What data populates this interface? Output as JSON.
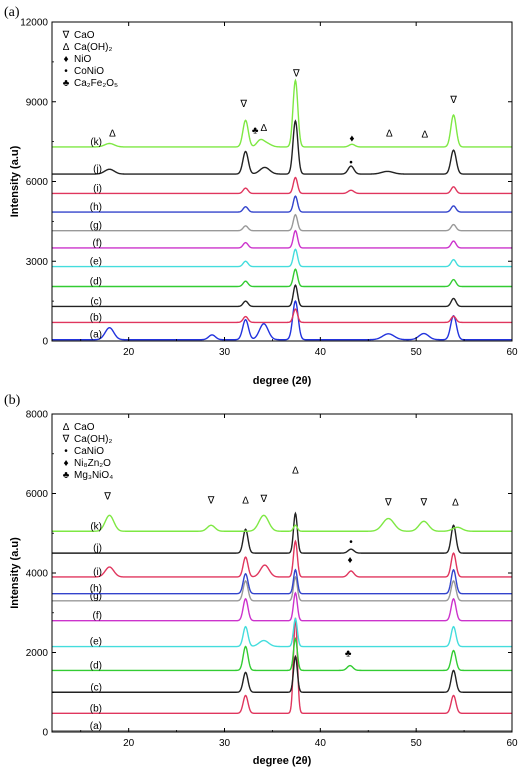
{
  "chart_data": [
    {
      "type": "line",
      "panel_label": "(a)",
      "xlabel": "degree (2θ)",
      "ylabel": "Intensity (a.u)",
      "xlim": [
        12,
        60
      ],
      "ylim": [
        0,
        12000
      ],
      "x_ticks": [
        20,
        30,
        40,
        50,
        60
      ],
      "y_ticks": [
        0,
        3000,
        6000,
        9000,
        12000
      ],
      "legend": [
        {
          "symbol": "∇",
          "label": "CaO"
        },
        {
          "symbol": "∆",
          "label": "Ca(OH)₂"
        },
        {
          "symbol": "♦",
          "label": "NiO"
        },
        {
          "symbol": "•",
          "label": "CoNiO"
        },
        {
          "symbol": "♣",
          "label": "Ca₂Fe₂O₅"
        }
      ],
      "series": [
        {
          "name": "(a)",
          "color": "#2233dd",
          "baseline": 50,
          "peaks": [
            [
              18.0,
              450,
              0.45
            ],
            [
              28.7,
              180,
              0.35
            ],
            [
              32.2,
              750,
              0.3
            ],
            [
              34.1,
              600,
              0.45
            ],
            [
              37.4,
              1450,
              0.28
            ],
            [
              47.1,
              220,
              0.6
            ],
            [
              50.8,
              230,
              0.5
            ],
            [
              53.9,
              900,
              0.3
            ]
          ]
        },
        {
          "name": "(b)",
          "color": "#e0365e",
          "baseline": 700,
          "peaks": [
            [
              32.2,
              220,
              0.25
            ],
            [
              37.4,
              500,
              0.22
            ],
            [
              53.9,
              230,
              0.25
            ]
          ]
        },
        {
          "name": "(c)",
          "color": "#222222",
          "baseline": 1300,
          "peaks": [
            [
              32.2,
              200,
              0.25
            ],
            [
              37.4,
              800,
              0.22
            ],
            [
              53.9,
              300,
              0.25
            ]
          ]
        },
        {
          "name": "(d)",
          "color": "#33cc33",
          "baseline": 2050,
          "peaks": [
            [
              32.2,
              200,
              0.25
            ],
            [
              37.4,
              650,
              0.22
            ],
            [
              53.9,
              260,
              0.25
            ]
          ]
        },
        {
          "name": "(e)",
          "color": "#44dddd",
          "baseline": 2800,
          "peaks": [
            [
              32.2,
              200,
              0.25
            ],
            [
              37.4,
              650,
              0.22
            ],
            [
              53.9,
              260,
              0.25
            ]
          ]
        },
        {
          "name": "(f)",
          "color": "#cc33cc",
          "baseline": 3500,
          "peaks": [
            [
              32.2,
              200,
              0.25
            ],
            [
              37.4,
              650,
              0.22
            ],
            [
              53.9,
              260,
              0.25
            ]
          ]
        },
        {
          "name": "(g)",
          "color": "#999999",
          "baseline": 4150,
          "peaks": [
            [
              32.2,
              180,
              0.25
            ],
            [
              37.4,
              600,
              0.22
            ],
            [
              53.9,
              230,
              0.25
            ]
          ]
        },
        {
          "name": "(h)",
          "color": "#3344cc",
          "baseline": 4850,
          "peaks": [
            [
              32.2,
              200,
              0.25
            ],
            [
              37.4,
              600,
              0.22
            ],
            [
              53.9,
              230,
              0.25
            ]
          ]
        },
        {
          "name": "(i)",
          "color": "#e0365e",
          "baseline": 5550,
          "peaks": [
            [
              32.2,
              200,
              0.25
            ],
            [
              37.4,
              600,
              0.22
            ],
            [
              43.2,
              120,
              0.3
            ],
            [
              53.9,
              250,
              0.25
            ]
          ]
        },
        {
          "name": "(j)",
          "color": "#222222",
          "baseline": 6280,
          "peaks": [
            [
              18.0,
              180,
              0.5
            ],
            [
              32.2,
              850,
              0.28
            ],
            [
              34.2,
              250,
              0.5
            ],
            [
              37.4,
              2000,
              0.25
            ],
            [
              43.2,
              300,
              0.3
            ],
            [
              47.0,
              100,
              0.6
            ],
            [
              53.9,
              900,
              0.28
            ]
          ]
        },
        {
          "name": "(k)",
          "color": "#7ee843",
          "baseline": 7300,
          "peaks": [
            [
              18.0,
              130,
              0.5
            ],
            [
              32.2,
              1000,
              0.28
            ],
            [
              33.7,
              200,
              0.35
            ],
            [
              34.3,
              150,
              0.5
            ],
            [
              37.4,
              2500,
              0.25
            ],
            [
              43.3,
              100,
              0.3
            ],
            [
              53.9,
              1200,
              0.28
            ]
          ]
        }
      ],
      "annotations": [
        {
          "symbol": "∆",
          "x": 18.3,
          "y": 7700
        },
        {
          "symbol": "∇",
          "x": 32.0,
          "y": 8800
        },
        {
          "symbol": "♣",
          "x": 33.2,
          "y": 7800
        },
        {
          "symbol": "∆",
          "x": 34.1,
          "y": 7900
        },
        {
          "symbol": "∇",
          "x": 37.5,
          "y": 9950
        },
        {
          "symbol": "♦",
          "x": 43.3,
          "y": 7500
        },
        {
          "symbol": "•",
          "x": 43.2,
          "y": 6600
        },
        {
          "symbol": "∆",
          "x": 47.2,
          "y": 7700
        },
        {
          "symbol": "∆",
          "x": 50.9,
          "y": 7650
        },
        {
          "symbol": "∇",
          "x": 53.9,
          "y": 8950
        }
      ]
    },
    {
      "type": "line",
      "panel_label": "(b)",
      "xlabel": "degree (2θ)",
      "ylabel": "Intensity (a.u)",
      "xlim": [
        12,
        60
      ],
      "ylim": [
        0,
        8000
      ],
      "x_ticks": [
        20,
        30,
        40,
        50,
        60
      ],
      "y_ticks": [
        0,
        2000,
        4000,
        6000,
        8000
      ],
      "legend": [
        {
          "symbol": "∆",
          "label": "CaO"
        },
        {
          "symbol": "∇",
          "label": "Ca(OH)₂"
        },
        {
          "symbol": "•",
          "label": "CaNiO"
        },
        {
          "symbol": "♦",
          "label": "Ni₈Zn₂O"
        },
        {
          "symbol": "♣",
          "label": "Mg₃NiO₄"
        }
      ],
      "series": [
        {
          "name": "(a)",
          "color": "#888888",
          "baseline": 30,
          "peaks": []
        },
        {
          "name": "(b)",
          "color": "#e0365e",
          "baseline": 470,
          "peaks": [
            [
              32.2,
              450,
              0.25
            ],
            [
              37.4,
              2400,
              0.2
            ],
            [
              53.9,
              450,
              0.25
            ]
          ]
        },
        {
          "name": "(c)",
          "color": "#222222",
          "baseline": 1000,
          "peaks": [
            [
              32.2,
              500,
              0.25
            ],
            [
              37.4,
              900,
              0.2
            ],
            [
              53.9,
              550,
              0.25
            ]
          ]
        },
        {
          "name": "(d)",
          "color": "#33cc33",
          "baseline": 1550,
          "peaks": [
            [
              32.2,
              600,
              0.25
            ],
            [
              37.4,
              800,
              0.2
            ],
            [
              43.1,
              120,
              0.3
            ],
            [
              53.9,
              500,
              0.25
            ]
          ]
        },
        {
          "name": "(e)",
          "color": "#44dddd",
          "baseline": 2150,
          "peaks": [
            [
              32.2,
              500,
              0.25
            ],
            [
              34.1,
              150,
              0.5
            ],
            [
              37.4,
              700,
              0.2
            ],
            [
              53.9,
              500,
              0.25
            ]
          ]
        },
        {
          "name": "(f)",
          "color": "#cc33cc",
          "baseline": 2800,
          "peaks": [
            [
              32.2,
              550,
              0.25
            ],
            [
              37.4,
              700,
              0.2
            ],
            [
              53.9,
              550,
              0.25
            ]
          ]
        },
        {
          "name": "(g)",
          "color": "#999999",
          "baseline": 3300,
          "peaks": [
            [
              32.2,
              500,
              0.25
            ],
            [
              37.4,
              600,
              0.2
            ],
            [
              53.9,
              500,
              0.25
            ]
          ]
        },
        {
          "name": "(h)",
          "color": "#3344cc",
          "baseline": 3480,
          "peaks": [
            [
              32.2,
              500,
              0.25
            ],
            [
              37.4,
              600,
              0.2
            ],
            [
              53.9,
              600,
              0.25
            ]
          ]
        },
        {
          "name": "(i)",
          "color": "#e0365e",
          "baseline": 3900,
          "peaks": [
            [
              18.0,
              250,
              0.45
            ],
            [
              32.2,
              500,
              0.25
            ],
            [
              34.2,
              300,
              0.45
            ],
            [
              37.4,
              900,
              0.2
            ],
            [
              43.2,
              150,
              0.3
            ],
            [
              53.9,
              600,
              0.25
            ]
          ]
        },
        {
          "name": "(j)",
          "color": "#222222",
          "baseline": 4500,
          "peaks": [
            [
              32.2,
              600,
              0.25
            ],
            [
              37.4,
              1000,
              0.2
            ],
            [
              43.2,
              100,
              0.3
            ],
            [
              53.9,
              700,
              0.25
            ]
          ]
        },
        {
          "name": "(k)",
          "color": "#7ee843",
          "baseline": 5050,
          "peaks": [
            [
              18.0,
              400,
              0.45
            ],
            [
              28.6,
              150,
              0.4
            ],
            [
              34.1,
              400,
              0.5
            ],
            [
              37.4,
              150,
              0.2
            ],
            [
              47.1,
              320,
              0.6
            ],
            [
              50.8,
              250,
              0.5
            ],
            [
              54.3,
              100,
              0.5
            ]
          ]
        }
      ],
      "annotations": [
        {
          "symbol": "∇",
          "x": 17.8,
          "y": 5850
        },
        {
          "symbol": "∇",
          "x": 28.6,
          "y": 5750
        },
        {
          "symbol": "∆",
          "x": 32.2,
          "y": 5750
        },
        {
          "symbol": "∇",
          "x": 34.1,
          "y": 5780
        },
        {
          "symbol": "∆",
          "x": 37.4,
          "y": 6500
        },
        {
          "symbol": "•",
          "x": 43.2,
          "y": 4700
        },
        {
          "symbol": "♦",
          "x": 43.1,
          "y": 4250
        },
        {
          "symbol": "♣",
          "x": 42.9,
          "y": 1900
        },
        {
          "symbol": "∇",
          "x": 47.1,
          "y": 5700
        },
        {
          "symbol": "∇",
          "x": 50.8,
          "y": 5700
        },
        {
          "symbol": "∆",
          "x": 54.1,
          "y": 5700
        }
      ]
    }
  ]
}
